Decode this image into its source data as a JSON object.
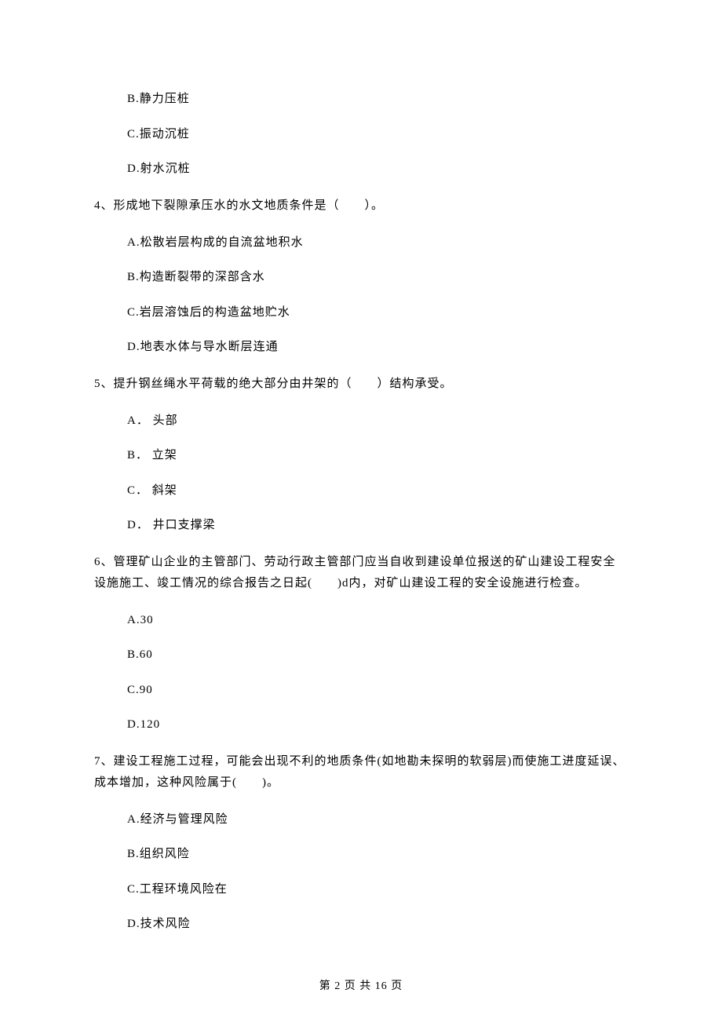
{
  "options_pre": [
    "B.静力压桩",
    "C.振动沉桩",
    "D.射水沉桩"
  ],
  "q4": {
    "text": "4、形成地下裂隙承压水的水文地质条件是（　　）。",
    "options": [
      "A.松散岩层构成的自流盆地积水",
      "B.构造断裂带的深部含水",
      "C.岩层溶蚀后的构造盆地贮水",
      "D.地表水体与导水断层连通"
    ]
  },
  "q5": {
    "text": "5、提升钢丝绳水平荷载的绝大部分由井架的（　　）结构承受。",
    "options": [
      "A． 头部",
      "B． 立架",
      "C． 斜架",
      "D． 井口支撑梁"
    ]
  },
  "q6": {
    "text": "6、管理矿山企业的主管部门、劳动行政主管部门应当自收到建设单位报送的矿山建设工程安全设施施工、竣工情况的综合报告之日起(　　)d内，对矿山建设工程的安全设施进行检查。",
    "options": [
      "A.30",
      "B.60",
      "C.90",
      "D.120"
    ]
  },
  "q7": {
    "text": "7、建设工程施工过程，可能会出现不利的地质条件(如地勘未探明的软弱层)而使施工进度延误、成本增加，这种风险属于(　　)。",
    "options": [
      "A.经济与管理风险",
      "B.组织风险",
      "C.工程环境风险在",
      "D.技术风险"
    ]
  },
  "footer": "第 2 页 共 16 页"
}
